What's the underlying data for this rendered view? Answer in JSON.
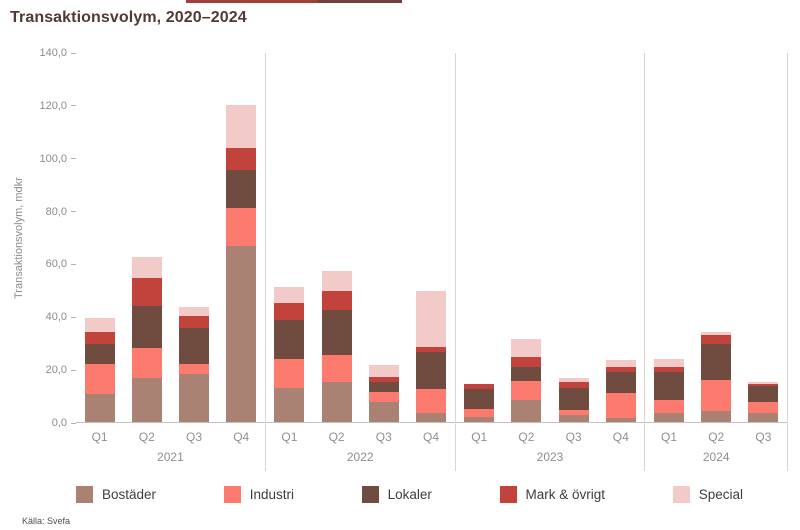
{
  "source": "Källa: Svefa",
  "edge_artifact": {
    "segments": [
      {
        "x": 186,
        "width": 132,
        "color": "#a04039"
      },
      {
        "x": 318,
        "width": 84,
        "color": "#744039"
      }
    ]
  },
  "chart_data": {
    "type": "bar",
    "stacked": true,
    "title": "Transaktionsvolym, 2020–2024",
    "ylabel": "Transaktionsvolym, mdkr",
    "xlabel": "",
    "ylim": [
      0,
      140
    ],
    "ytick_step": 20,
    "yticks": [
      "0,0",
      "20,0",
      "40,0",
      "60,0",
      "80,0",
      "100,0",
      "120,0",
      "140,0"
    ],
    "grid": false,
    "legend_position": "bottom",
    "groups": [
      {
        "year": "2021",
        "quarters": [
          "Q1",
          "Q2",
          "Q3",
          "Q4"
        ]
      },
      {
        "year": "2022",
        "quarters": [
          "Q1",
          "Q2",
          "Q3",
          "Q4"
        ]
      },
      {
        "year": "2023",
        "quarters": [
          "Q1",
          "Q2",
          "Q3",
          "Q4"
        ]
      },
      {
        "year": "2024",
        "quarters": [
          "Q1",
          "Q2",
          "Q3"
        ]
      }
    ],
    "series": [
      {
        "name": "Bostäder",
        "color": "#a98274",
        "values": [
          10.5,
          16.5,
          18.0,
          66.5,
          13.0,
          15.0,
          7.5,
          3.5,
          2.0,
          8.5,
          2.5,
          1.5,
          3.5,
          4.0,
          3.5
        ]
      },
      {
        "name": "Industri",
        "color": "#fc7a6e",
        "values": [
          11.5,
          11.5,
          4.0,
          14.5,
          11.0,
          10.5,
          4.0,
          9.0,
          3.0,
          7.0,
          2.0,
          9.5,
          5.0,
          12.0,
          4.0
        ]
      },
      {
        "name": "Lokaler",
        "color": "#6f4b40",
        "values": [
          7.5,
          16.0,
          13.5,
          14.5,
          14.5,
          17.0,
          3.5,
          14.0,
          7.5,
          5.5,
          8.5,
          8.0,
          10.5,
          13.5,
          6.0
        ]
      },
      {
        "name": "Mark & övrigt",
        "color": "#c2423c",
        "values": [
          4.5,
          10.5,
          4.5,
          8.0,
          6.5,
          7.0,
          2.0,
          2.0,
          2.0,
          3.5,
          2.0,
          2.0,
          2.0,
          3.5,
          1.0
        ]
      },
      {
        "name": "Special",
        "color": "#f2cac7",
        "values": [
          5.5,
          8.0,
          3.5,
          16.5,
          6.0,
          7.5,
          4.5,
          21.0,
          0.0,
          7.0,
          1.5,
          2.5,
          3.0,
          1.0,
          0.7
        ]
      }
    ],
    "totals": [
      39.5,
      62.5,
      43.5,
      120.0,
      51.0,
      57.0,
      21.5,
      49.5,
      14.5,
      31.5,
      16.5,
      23.5,
      24.0,
      34.0,
      15.2
    ]
  }
}
